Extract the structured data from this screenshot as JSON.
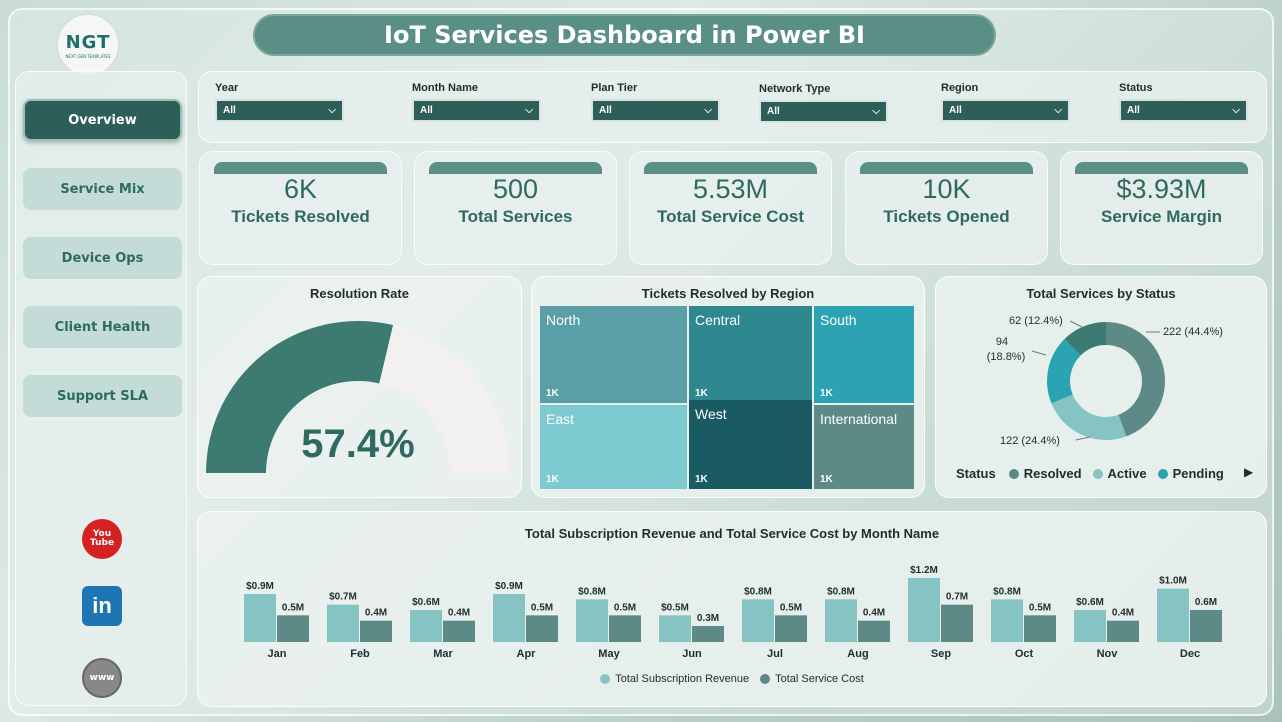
{
  "header": {
    "title": "IoT Services Dashboard in Power BI"
  },
  "logo": {
    "text": "NGT",
    "subtitle": "NEXT GEN TEMPLATES"
  },
  "sidebar": {
    "items": [
      {
        "label": "Overview",
        "active": true
      },
      {
        "label": "Service Mix",
        "active": false
      },
      {
        "label": "Device Ops",
        "active": false
      },
      {
        "label": "Client Health",
        "active": false
      },
      {
        "label": "Support SLA",
        "active": false
      }
    ],
    "social": {
      "youtube": "You Tube",
      "linkedin": "in",
      "web": "www"
    }
  },
  "filters": [
    {
      "label": "Year",
      "value": "All"
    },
    {
      "label": "Month Name",
      "value": "All"
    },
    {
      "label": "Plan Tier",
      "value": "All"
    },
    {
      "label": "Network Type",
      "value": "All"
    },
    {
      "label": "Region",
      "value": "All"
    },
    {
      "label": "Status",
      "value": "All"
    }
  ],
  "kpis": [
    {
      "value": "6K",
      "label": "Tickets Resolved"
    },
    {
      "value": "500",
      "label": "Total Services"
    },
    {
      "value": "5.53M",
      "label": "Total Service Cost"
    },
    {
      "value": "10K",
      "label": "Tickets Opened"
    },
    {
      "value": "$3.93M",
      "label": "Service Margin"
    }
  ],
  "colors": {
    "dark": "#3d7a72",
    "mid": "#5a8f85",
    "light": "#86c4c4",
    "accent": "#2e5e58"
  },
  "chart_data": [
    {
      "type": "gauge",
      "title": "Resolution Rate",
      "value": 57.4,
      "display": "57.4%",
      "max": 100
    },
    {
      "type": "treemap",
      "title": "Tickets Resolved by Region",
      "items": [
        {
          "name": "North",
          "label": "1K",
          "color": "#5a9fa8"
        },
        {
          "name": "Central",
          "label": "1K",
          "color": "#2f8790"
        },
        {
          "name": "South",
          "label": "1K",
          "color": "#2ba3b3"
        },
        {
          "name": "East",
          "label": "1K",
          "color": "#7cc9d0"
        },
        {
          "name": "West",
          "label": "1K",
          "color": "#195a63"
        },
        {
          "name": "International",
          "label": "1K",
          "color": "#5d8a86"
        }
      ]
    },
    {
      "type": "pie",
      "title": "Total Services by Status",
      "slices": [
        {
          "name": "Resolved",
          "value": 222,
          "label": "222 (44.4%)",
          "color": "#5d8a86"
        },
        {
          "name": "Active",
          "value": 122,
          "label": "122 (24.4%)",
          "color": "#86c4c4"
        },
        {
          "name": "Pending",
          "value": 94,
          "label": "94 (18.8%)",
          "color": "#2ba3b3"
        },
        {
          "name": "",
          "value": 62,
          "label": "62 (12.4%)",
          "color": "#3d7a72"
        }
      ],
      "legend_title": "Status",
      "legend": [
        "Resolved",
        "Active",
        "Pending"
      ]
    },
    {
      "type": "bar",
      "title": "Total Subscription Revenue and Total Service Cost by Month Name",
      "categories": [
        "Jan",
        "Feb",
        "Mar",
        "Apr",
        "May",
        "Jun",
        "Jul",
        "Aug",
        "Sep",
        "Oct",
        "Nov",
        "Dec"
      ],
      "series": [
        {
          "name": "Total Subscription Revenue",
          "color": "#86c4c4",
          "values": [
            0.9,
            0.7,
            0.6,
            0.9,
            0.8,
            0.5,
            0.8,
            0.8,
            1.2,
            0.8,
            0.6,
            1.0
          ],
          "labels": [
            "$0.9M",
            "$0.7M",
            "$0.6M",
            "$0.9M",
            "$0.8M",
            "$0.5M",
            "$0.8M",
            "$0.8M",
            "$1.2M",
            "$0.8M",
            "$0.6M",
            "$1.0M"
          ]
        },
        {
          "name": "Total Service Cost",
          "color": "#5d8a86",
          "values": [
            0.5,
            0.4,
            0.4,
            0.5,
            0.5,
            0.3,
            0.5,
            0.4,
            0.7,
            0.5,
            0.4,
            0.6
          ],
          "labels": [
            "0.5M",
            "0.4M",
            "0.4M",
            "0.5M",
            "0.5M",
            "0.3M",
            "0.5M",
            "0.4M",
            "0.7M",
            "0.5M",
            "0.4M",
            "0.6M"
          ]
        }
      ]
    }
  ]
}
